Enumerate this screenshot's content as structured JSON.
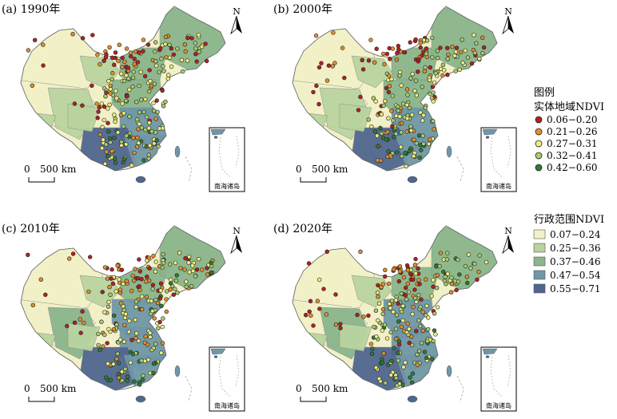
{
  "panels": [
    {
      "id": "1990",
      "title": "(a) 1990年"
    },
    {
      "id": "2000",
      "title": "(b) 2000年"
    },
    {
      "id": "2010",
      "title": "(c) 2010年"
    },
    {
      "id": "2020",
      "title": "(d) 2020年"
    }
  ],
  "north_arrow_label": "N",
  "scale_bar": {
    "zero": "0",
    "distance": "500 km"
  },
  "inset_label": "南海诸岛",
  "legend": {
    "heading": "图例",
    "point_title": "实体地域NDVI",
    "point_classes": [
      {
        "label": "0.06−0.20",
        "color": "#b22222"
      },
      {
        "label": "0.21−0.26",
        "color": "#e0902a"
      },
      {
        "label": "0.27−0.31",
        "color": "#eeee7a"
      },
      {
        "label": "0.32−0.41",
        "color": "#a8cc6e"
      },
      {
        "label": "0.42−0.60",
        "color": "#2f7a36"
      }
    ],
    "area_title": "行政范围NDVI",
    "area_classes": [
      {
        "label": "0.07−0.24",
        "color": "#f1f0c8"
      },
      {
        "label": "0.25−0.36",
        "color": "#b9d3a0"
      },
      {
        "label": "0.37−0.46",
        "color": "#8ab58d"
      },
      {
        "label": "0.47−0.54",
        "color": "#6f97a7"
      },
      {
        "label": "0.55−0.71",
        "color": "#4e6690"
      }
    ]
  }
}
